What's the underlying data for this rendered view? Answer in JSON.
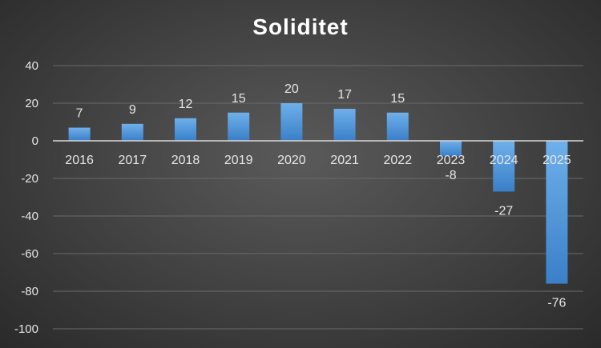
{
  "chart_data": {
    "type": "bar",
    "title": "Soliditet",
    "xlabel": "",
    "ylabel": "",
    "categories": [
      "2016",
      "2017",
      "2018",
      "2019",
      "2020",
      "2021",
      "2022",
      "2023",
      "2024",
      "2025"
    ],
    "values": [
      7,
      9,
      12,
      15,
      20,
      17,
      15,
      -8,
      -27,
      -76
    ],
    "ylim": [
      -100,
      40
    ],
    "yticks": [
      40,
      20,
      0,
      -20,
      -40,
      -60,
      -80,
      -100
    ],
    "grid": true,
    "legend": "none",
    "colors": {
      "bar_top": "#6fb0ea",
      "bar_bottom": "#3a7fc8",
      "grid": "#6a6a6a",
      "zero_line": "#d9d9d9",
      "text": "#e6e6e6"
    }
  }
}
